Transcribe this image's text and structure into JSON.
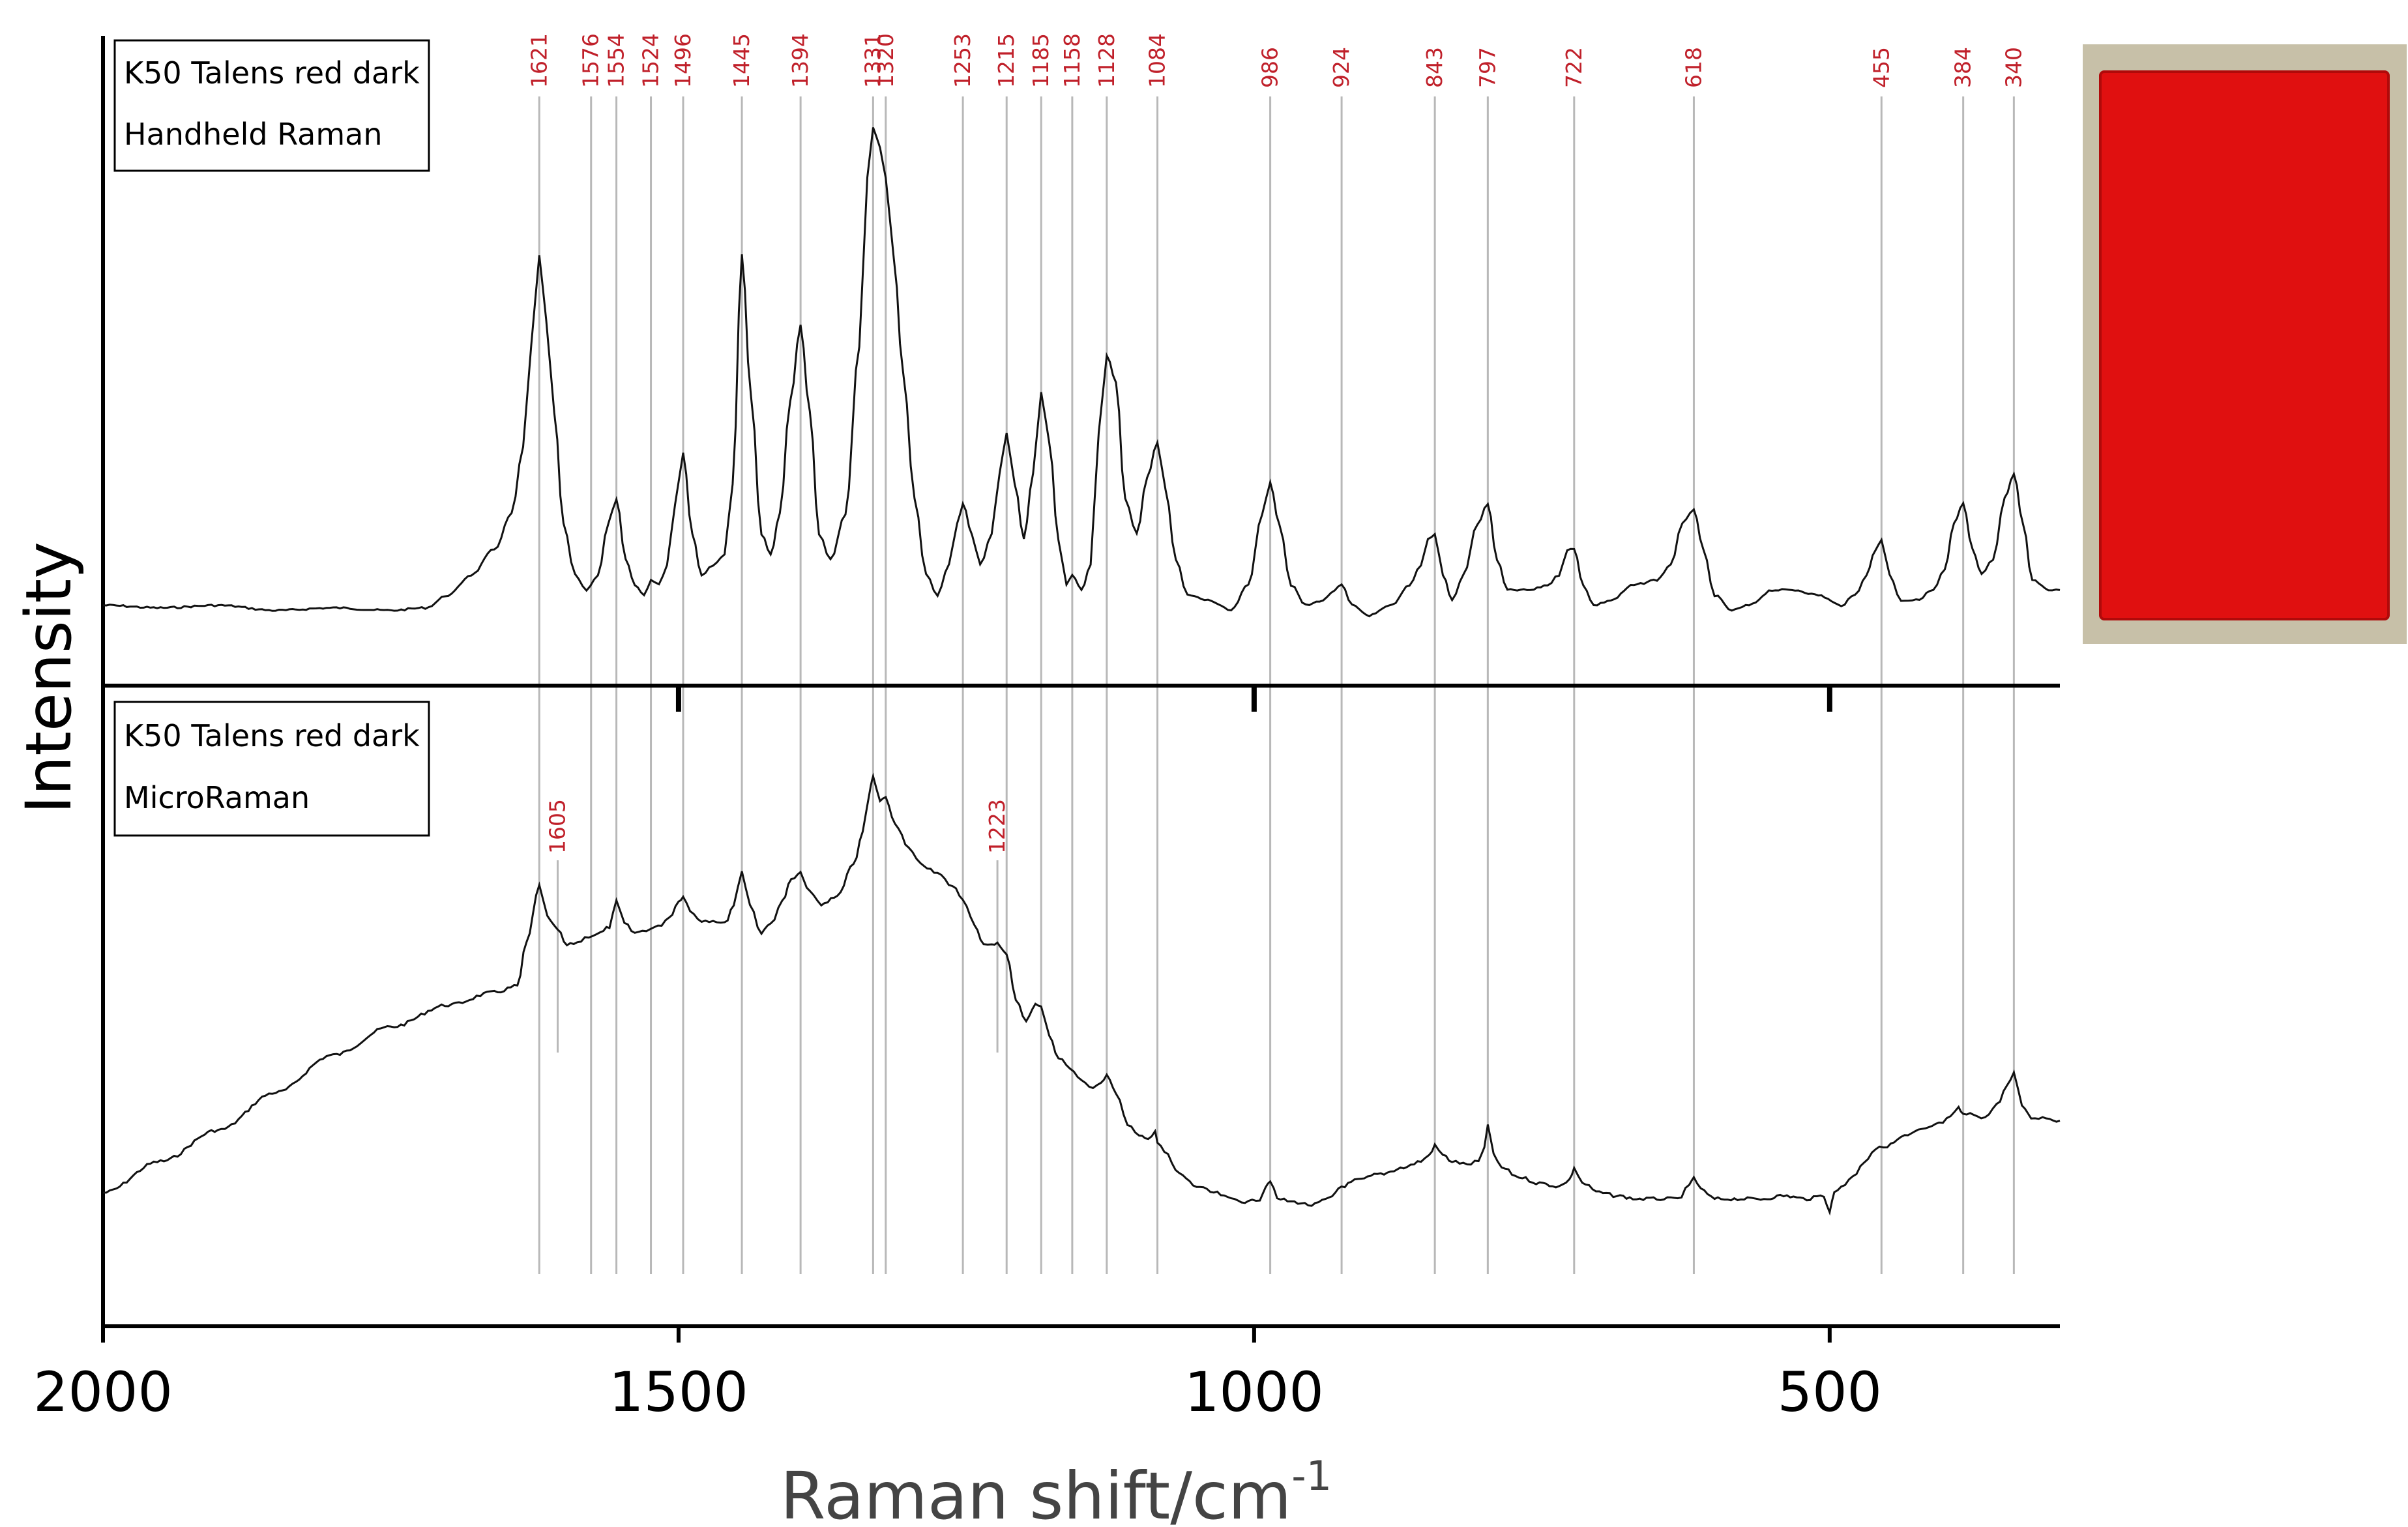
{
  "chart_data": {
    "type": "line",
    "xlabel": "Raman shift/cm",
    "xlabel_superscript": "-1",
    "ylabel": "Intensity",
    "x_reversed": true,
    "xlim": [
      2000,
      300
    ],
    "x_ticks": [
      2000,
      1500,
      1000,
      500
    ],
    "grid": false,
    "panels": [
      {
        "sample": "K50 Talens red dark",
        "instrument": "Handheld Raman",
        "series_points": [
          [
            2000,
            0.04
          ],
          [
            1950,
            0.035
          ],
          [
            1900,
            0.04
          ],
          [
            1850,
            0.03
          ],
          [
            1800,
            0.035
          ],
          [
            1750,
            0.03
          ],
          [
            1720,
            0.035
          ],
          [
            1700,
            0.06
          ],
          [
            1680,
            0.1
          ],
          [
            1660,
            0.15
          ],
          [
            1645,
            0.22
          ],
          [
            1635,
            0.35
          ],
          [
            1628,
            0.55
          ],
          [
            1621,
            0.73
          ],
          [
            1615,
            0.6
          ],
          [
            1608,
            0.42
          ],
          [
            1600,
            0.2
          ],
          [
            1590,
            0.1
          ],
          [
            1580,
            0.07
          ],
          [
            1570,
            0.1
          ],
          [
            1561,
            0.2
          ],
          [
            1554,
            0.25
          ],
          [
            1546,
            0.13
          ],
          [
            1538,
            0.08
          ],
          [
            1530,
            0.06
          ],
          [
            1524,
            0.09
          ],
          [
            1517,
            0.08
          ],
          [
            1510,
            0.12
          ],
          [
            1503,
            0.24
          ],
          [
            1496,
            0.34
          ],
          [
            1488,
            0.18
          ],
          [
            1480,
            0.1
          ],
          [
            1470,
            0.12
          ],
          [
            1460,
            0.14
          ],
          [
            1453,
            0.28
          ],
          [
            1445,
            0.73
          ],
          [
            1437,
            0.45
          ],
          [
            1428,
            0.18
          ],
          [
            1420,
            0.14
          ],
          [
            1412,
            0.22
          ],
          [
            1403,
            0.44
          ],
          [
            1394,
            0.59
          ],
          [
            1386,
            0.42
          ],
          [
            1378,
            0.18
          ],
          [
            1368,
            0.13
          ],
          [
            1355,
            0.22
          ],
          [
            1343,
            0.55
          ],
          [
            1336,
            0.88
          ],
          [
            1331,
            0.98
          ],
          [
            1325,
            0.94
          ],
          [
            1320,
            0.88
          ],
          [
            1313,
            0.72
          ],
          [
            1305,
            0.5
          ],
          [
            1295,
            0.25
          ],
          [
            1285,
            0.1
          ],
          [
            1275,
            0.06
          ],
          [
            1265,
            0.12
          ],
          [
            1258,
            0.2
          ],
          [
            1253,
            0.24
          ],
          [
            1245,
            0.18
          ],
          [
            1238,
            0.12
          ],
          [
            1228,
            0.18
          ],
          [
            1221,
            0.3
          ],
          [
            1215,
            0.38
          ],
          [
            1208,
            0.28
          ],
          [
            1200,
            0.17
          ],
          [
            1192,
            0.3
          ],
          [
            1185,
            0.46
          ],
          [
            1178,
            0.36
          ],
          [
            1170,
            0.17
          ],
          [
            1163,
            0.08
          ],
          [
            1158,
            0.1
          ],
          [
            1150,
            0.07
          ],
          [
            1142,
            0.12
          ],
          [
            1135,
            0.38
          ],
          [
            1128,
            0.53
          ],
          [
            1120,
            0.48
          ],
          [
            1112,
            0.25
          ],
          [
            1102,
            0.18
          ],
          [
            1093,
            0.29
          ],
          [
            1084,
            0.36
          ],
          [
            1077,
            0.27
          ],
          [
            1068,
            0.13
          ],
          [
            1058,
            0.06
          ],
          [
            1040,
            0.05
          ],
          [
            1020,
            0.03
          ],
          [
            1005,
            0.08
          ],
          [
            993,
            0.22
          ],
          [
            986,
            0.28
          ],
          [
            978,
            0.2
          ],
          [
            968,
            0.08
          ],
          [
            955,
            0.04
          ],
          [
            940,
            0.05
          ],
          [
            930,
            0.07
          ],
          [
            924,
            0.08
          ],
          [
            915,
            0.04
          ],
          [
            900,
            0.02
          ],
          [
            880,
            0.04
          ],
          [
            865,
            0.08
          ],
          [
            855,
            0.12
          ],
          [
            849,
            0.17
          ],
          [
            843,
            0.18
          ],
          [
            836,
            0.1
          ],
          [
            828,
            0.05
          ],
          [
            818,
            0.1
          ],
          [
            806,
            0.2
          ],
          [
            797,
            0.24
          ],
          [
            789,
            0.13
          ],
          [
            780,
            0.07
          ],
          [
            760,
            0.07
          ],
          [
            745,
            0.08
          ],
          [
            735,
            0.1
          ],
          [
            728,
            0.15
          ],
          [
            722,
            0.15
          ],
          [
            714,
            0.08
          ],
          [
            705,
            0.04
          ],
          [
            690,
            0.05
          ],
          [
            670,
            0.08
          ],
          [
            650,
            0.09
          ],
          [
            638,
            0.12
          ],
          [
            628,
            0.2
          ],
          [
            618,
            0.23
          ],
          [
            610,
            0.15
          ],
          [
            600,
            0.06
          ],
          [
            585,
            0.03
          ],
          [
            570,
            0.04
          ],
          [
            550,
            0.07
          ],
          [
            530,
            0.07
          ],
          [
            510,
            0.06
          ],
          [
            490,
            0.04
          ],
          [
            478,
            0.06
          ],
          [
            468,
            0.1
          ],
          [
            460,
            0.15
          ],
          [
            455,
            0.17
          ],
          [
            448,
            0.1
          ],
          [
            438,
            0.05
          ],
          [
            425,
            0.05
          ],
          [
            410,
            0.07
          ],
          [
            400,
            0.11
          ],
          [
            392,
            0.2
          ],
          [
            384,
            0.24
          ],
          [
            376,
            0.15
          ],
          [
            368,
            0.1
          ],
          [
            358,
            0.13
          ],
          [
            348,
            0.25
          ],
          [
            340,
            0.3
          ],
          [
            332,
            0.2
          ],
          [
            324,
            0.09
          ],
          [
            310,
            0.07
          ],
          [
            300,
            0.07
          ]
        ]
      },
      {
        "sample": "K50 Talens red dark",
        "instrument": "MicroRaman",
        "series_points": [
          [
            2000,
            0.0
          ],
          [
            1950,
            0.1
          ],
          [
            1900,
            0.2
          ],
          [
            1850,
            0.32
          ],
          [
            1800,
            0.44
          ],
          [
            1750,
            0.53
          ],
          [
            1700,
            0.6
          ],
          [
            1660,
            0.64
          ],
          [
            1640,
            0.66
          ],
          [
            1632,
            0.8
          ],
          [
            1621,
            0.98
          ],
          [
            1614,
            0.88
          ],
          [
            1605,
            0.84
          ],
          [
            1597,
            0.79
          ],
          [
            1588,
            0.8
          ],
          [
            1578,
            0.82
          ],
          [
            1568,
            0.83
          ],
          [
            1560,
            0.85
          ],
          [
            1554,
            0.93
          ],
          [
            1547,
            0.86
          ],
          [
            1538,
            0.83
          ],
          [
            1528,
            0.84
          ],
          [
            1518,
            0.85
          ],
          [
            1508,
            0.88
          ],
          [
            1500,
            0.93
          ],
          [
            1496,
            0.95
          ],
          [
            1490,
            0.9
          ],
          [
            1480,
            0.87
          ],
          [
            1470,
            0.87
          ],
          [
            1460,
            0.86
          ],
          [
            1452,
            0.92
          ],
          [
            1445,
            1.03
          ],
          [
            1438,
            0.92
          ],
          [
            1428,
            0.83
          ],
          [
            1420,
            0.86
          ],
          [
            1410,
            0.93
          ],
          [
            1402,
            1.0
          ],
          [
            1394,
            1.02
          ],
          [
            1386,
            0.96
          ],
          [
            1376,
            0.92
          ],
          [
            1362,
            0.95
          ],
          [
            1348,
            1.05
          ],
          [
            1340,
            1.15
          ],
          [
            1333,
            1.3
          ],
          [
            1331,
            1.33
          ],
          [
            1325,
            1.25
          ],
          [
            1320,
            1.26
          ],
          [
            1312,
            1.18
          ],
          [
            1300,
            1.1
          ],
          [
            1290,
            1.05
          ],
          [
            1275,
            1.02
          ],
          [
            1262,
            0.98
          ],
          [
            1253,
            0.94
          ],
          [
            1243,
            0.86
          ],
          [
            1235,
            0.79
          ],
          [
            1228,
            0.79
          ],
          [
            1223,
            0.8
          ],
          [
            1215,
            0.76
          ],
          [
            1207,
            0.62
          ],
          [
            1198,
            0.55
          ],
          [
            1190,
            0.6
          ],
          [
            1185,
            0.6
          ],
          [
            1178,
            0.5
          ],
          [
            1170,
            0.43
          ],
          [
            1160,
            0.4
          ],
          [
            1150,
            0.36
          ],
          [
            1140,
            0.33
          ],
          [
            1133,
            0.35
          ],
          [
            1128,
            0.38
          ],
          [
            1120,
            0.32
          ],
          [
            1110,
            0.22
          ],
          [
            1100,
            0.18
          ],
          [
            1092,
            0.17
          ],
          [
            1086,
            0.2
          ],
          [
            1084,
            0.16
          ],
          [
            1078,
            0.13
          ],
          [
            1065,
            0.06
          ],
          [
            1050,
            0.02
          ],
          [
            1035,
            0.0
          ],
          [
            1020,
            -0.02
          ],
          [
            1005,
            -0.03
          ],
          [
            995,
            -0.02
          ],
          [
            990,
            0.02
          ],
          [
            986,
            0.04
          ],
          [
            980,
            -0.02
          ],
          [
            965,
            -0.03
          ],
          [
            950,
            -0.04
          ],
          [
            935,
            -0.02
          ],
          [
            924,
            0.02
          ],
          [
            910,
            0.04
          ],
          [
            890,
            0.06
          ],
          [
            870,
            0.08
          ],
          [
            855,
            0.1
          ],
          [
            848,
            0.12
          ],
          [
            843,
            0.15
          ],
          [
            836,
            0.12
          ],
          [
            828,
            0.1
          ],
          [
            815,
            0.09
          ],
          [
            805,
            0.1
          ],
          [
            800,
            0.14
          ],
          [
            797,
            0.22
          ],
          [
            792,
            0.12
          ],
          [
            785,
            0.08
          ],
          [
            770,
            0.05
          ],
          [
            752,
            0.03
          ],
          [
            735,
            0.02
          ],
          [
            726,
            0.04
          ],
          [
            722,
            0.08
          ],
          [
            715,
            0.03
          ],
          [
            700,
            0.0
          ],
          [
            685,
            -0.01
          ],
          [
            668,
            -0.02
          ],
          [
            650,
            -0.02
          ],
          [
            632,
            -0.02
          ],
          [
            622,
            0.02
          ],
          [
            618,
            0.05
          ],
          [
            612,
            0.01
          ],
          [
            600,
            -0.02
          ],
          [
            580,
            -0.02
          ],
          [
            560,
            -0.02
          ],
          [
            540,
            -0.01
          ],
          [
            520,
            -0.02
          ],
          [
            505,
            -0.01
          ],
          [
            500,
            -0.06
          ],
          [
            496,
            0.0
          ],
          [
            490,
            0.02
          ],
          [
            480,
            0.05
          ],
          [
            470,
            0.1
          ],
          [
            460,
            0.14
          ],
          [
            450,
            0.15
          ],
          [
            435,
            0.18
          ],
          [
            420,
            0.2
          ],
          [
            405,
            0.22
          ],
          [
            395,
            0.24
          ],
          [
            388,
            0.27
          ],
          [
            384,
            0.25
          ],
          [
            375,
            0.25
          ],
          [
            365,
            0.24
          ],
          [
            355,
            0.28
          ],
          [
            346,
            0.34
          ],
          [
            340,
            0.38
          ],
          [
            333,
            0.28
          ],
          [
            325,
            0.24
          ],
          [
            315,
            0.24
          ],
          [
            300,
            0.23
          ]
        ]
      }
    ],
    "peak_labels_top": [
      1621,
      1576,
      1554,
      1524,
      1496,
      1445,
      1394,
      1331,
      1320,
      1253,
      1215,
      1185,
      1158,
      1128,
      1084,
      986,
      924,
      843,
      797,
      722,
      618,
      455,
      384,
      340
    ],
    "peak_labels_bottom": [
      1605,
      1223
    ],
    "inset_photo": {
      "fill_color": "#e01010",
      "border_color": "#c7c0a8"
    },
    "colors": {
      "spectrum": "#111111",
      "peak_lines": "#b8b8b8",
      "peak_text": "#c0202a",
      "axes": "#000000"
    }
  }
}
